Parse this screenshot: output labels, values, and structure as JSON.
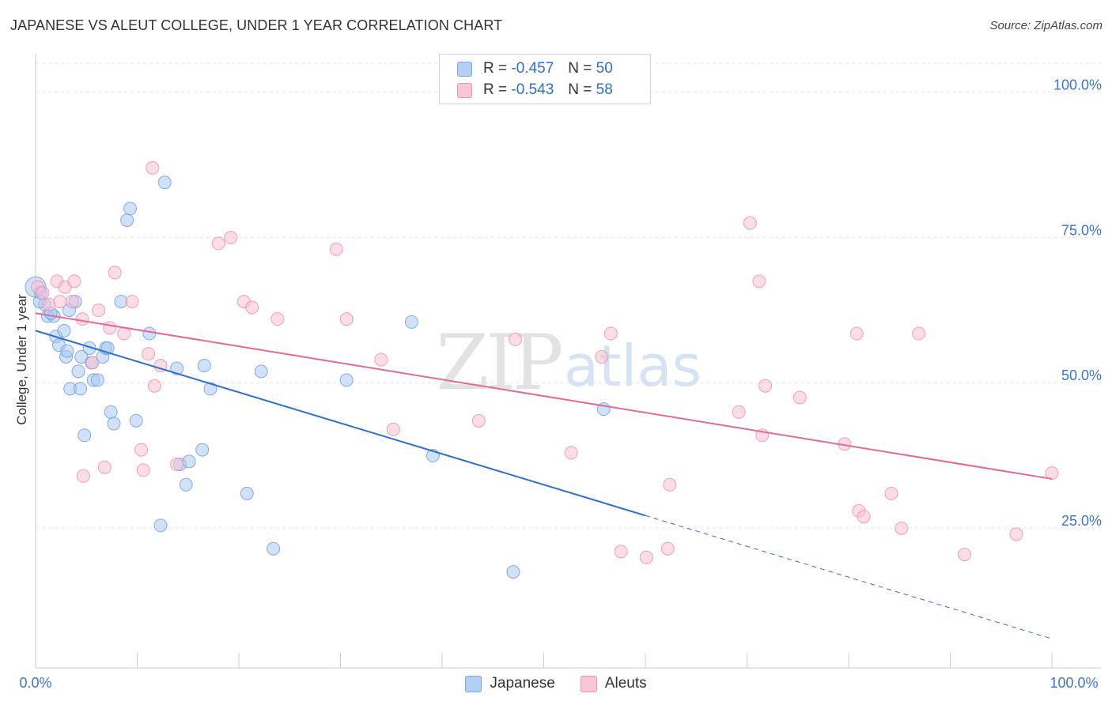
{
  "colors": {
    "japanese_fill": "#a9c8f2",
    "japanese_stroke": "#6f9fe0",
    "japanese_line": "#2b6fd1",
    "aleuts_fill": "#f8c1d2",
    "aleuts_stroke": "#ec8fae",
    "aleuts_line": "#e36b93",
    "axis_label": "#3a74cc"
  },
  "chart_data": {
    "type": "scatter",
    "title": "JAPANESE VS ALEUT COLLEGE, UNDER 1 YEAR CORRELATION CHART",
    "source": "Source: ZipAtlas.com",
    "xlabel": "",
    "ylabel": "College, Under 1 year",
    "xlim": [
      0,
      100
    ],
    "ylim": [
      0,
      104
    ],
    "x_tick_labels": [
      "0.0%",
      "100.0%"
    ],
    "y_ticks": [
      25,
      50,
      75,
      100
    ],
    "y_tick_labels": [
      "25.0%",
      "50.0%",
      "75.0%",
      "100.0%"
    ],
    "grid": true,
    "watermark": "ZIPatlas",
    "stats": [
      {
        "series": "Japanese",
        "r_label": "R =",
        "r": "-0.457",
        "n_label": "N =",
        "n": "50"
      },
      {
        "series": "Aleuts",
        "r_label": "R =",
        "r": "-0.543",
        "n_label": "N =",
        "n": "58"
      }
    ],
    "legend": [
      "Japanese",
      "Aleuts"
    ],
    "series": [
      {
        "name": "Japanese",
        "trend": {
          "x0": 0,
          "y0": 58.0,
          "x_solid_end": 60,
          "x1": 100,
          "y1": 5.0
        },
        "points": [
          [
            0.0,
            65.5
          ],
          [
            0.5,
            64.5
          ],
          [
            0.9,
            62.5
          ],
          [
            1.2,
            60.5
          ],
          [
            1.8,
            60.5
          ],
          [
            2.0,
            57.0
          ],
          [
            2.3,
            55.5
          ],
          [
            2.8,
            58.0
          ],
          [
            3.0,
            53.5
          ],
          [
            3.3,
            61.5
          ],
          [
            3.4,
            48.0
          ],
          [
            4.2,
            51.0
          ],
          [
            4.4,
            48.0
          ],
          [
            3.9,
            63.0
          ],
          [
            4.5,
            53.5
          ],
          [
            4.8,
            40.0
          ],
          [
            5.3,
            55.0
          ],
          [
            5.5,
            52.5
          ],
          [
            5.7,
            49.5
          ],
          [
            6.1,
            49.5
          ],
          [
            6.6,
            53.5
          ],
          [
            6.9,
            55.0
          ],
          [
            7.1,
            55.0
          ],
          [
            7.4,
            44.0
          ],
          [
            7.7,
            42.0
          ],
          [
            8.4,
            63.0
          ],
          [
            9.9,
            42.5
          ],
          [
            9.0,
            77.0
          ],
          [
            9.3,
            79.0
          ],
          [
            11.2,
            57.5
          ],
          [
            12.7,
            83.5
          ],
          [
            12.3,
            24.5
          ],
          [
            13.9,
            51.5
          ],
          [
            14.2,
            35.0
          ],
          [
            14.8,
            31.5
          ],
          [
            15.1,
            35.5
          ],
          [
            16.4,
            37.5
          ],
          [
            16.6,
            52.0
          ],
          [
            17.2,
            48.0
          ],
          [
            20.8,
            30.0
          ],
          [
            22.2,
            51.0
          ],
          [
            23.4,
            20.5
          ],
          [
            30.6,
            49.5
          ],
          [
            37.0,
            59.5
          ],
          [
            39.1,
            36.5
          ],
          [
            47.0,
            16.5
          ],
          [
            55.9,
            44.5
          ],
          [
            0.4,
            63.0
          ],
          [
            1.5,
            61.0
          ],
          [
            3.1,
            54.5
          ]
        ]
      },
      {
        "name": "Aleuts",
        "trend": {
          "x0": 0,
          "y0": 61.0,
          "x_solid_end": 100,
          "x1": 100,
          "y1": 32.5
        },
        "points": [
          [
            0.2,
            65.5
          ],
          [
            0.7,
            64.5
          ],
          [
            1.3,
            62.5
          ],
          [
            2.1,
            66.5
          ],
          [
            2.4,
            63.0
          ],
          [
            2.9,
            65.5
          ],
          [
            3.6,
            63.0
          ],
          [
            3.8,
            66.5
          ],
          [
            4.6,
            60.0
          ],
          [
            4.7,
            33.0
          ],
          [
            5.6,
            52.5
          ],
          [
            6.2,
            61.5
          ],
          [
            6.8,
            34.5
          ],
          [
            7.3,
            58.5
          ],
          [
            7.8,
            68.0
          ],
          [
            8.7,
            57.5
          ],
          [
            9.5,
            63.0
          ],
          [
            10.4,
            37.5
          ],
          [
            10.6,
            34.0
          ],
          [
            11.1,
            54.0
          ],
          [
            11.5,
            86.0
          ],
          [
            11.7,
            48.5
          ],
          [
            12.3,
            52.0
          ],
          [
            13.9,
            35.0
          ],
          [
            18.0,
            73.0
          ],
          [
            19.2,
            74.0
          ],
          [
            20.5,
            63.0
          ],
          [
            21.3,
            62.0
          ],
          [
            23.8,
            60.0
          ],
          [
            29.6,
            72.0
          ],
          [
            30.6,
            60.0
          ],
          [
            34.0,
            53.0
          ],
          [
            35.2,
            41.0
          ],
          [
            43.6,
            42.5
          ],
          [
            47.2,
            56.5
          ],
          [
            52.7,
            37.0
          ],
          [
            55.7,
            53.5
          ],
          [
            56.6,
            57.5
          ],
          [
            57.6,
            20.0
          ],
          [
            60.1,
            19.0
          ],
          [
            62.2,
            20.5
          ],
          [
            62.4,
            31.5
          ],
          [
            69.2,
            44.0
          ],
          [
            70.3,
            76.5
          ],
          [
            71.2,
            66.5
          ],
          [
            71.5,
            40.0
          ],
          [
            71.8,
            48.5
          ],
          [
            75.2,
            46.5
          ],
          [
            79.6,
            38.5
          ],
          [
            80.8,
            57.5
          ],
          [
            81.0,
            27.0
          ],
          [
            81.5,
            26.0
          ],
          [
            84.2,
            30.0
          ],
          [
            85.2,
            24.0
          ],
          [
            86.9,
            57.5
          ],
          [
            91.4,
            19.5
          ],
          [
            96.5,
            23.0
          ],
          [
            100.0,
            33.5
          ]
        ]
      }
    ]
  }
}
